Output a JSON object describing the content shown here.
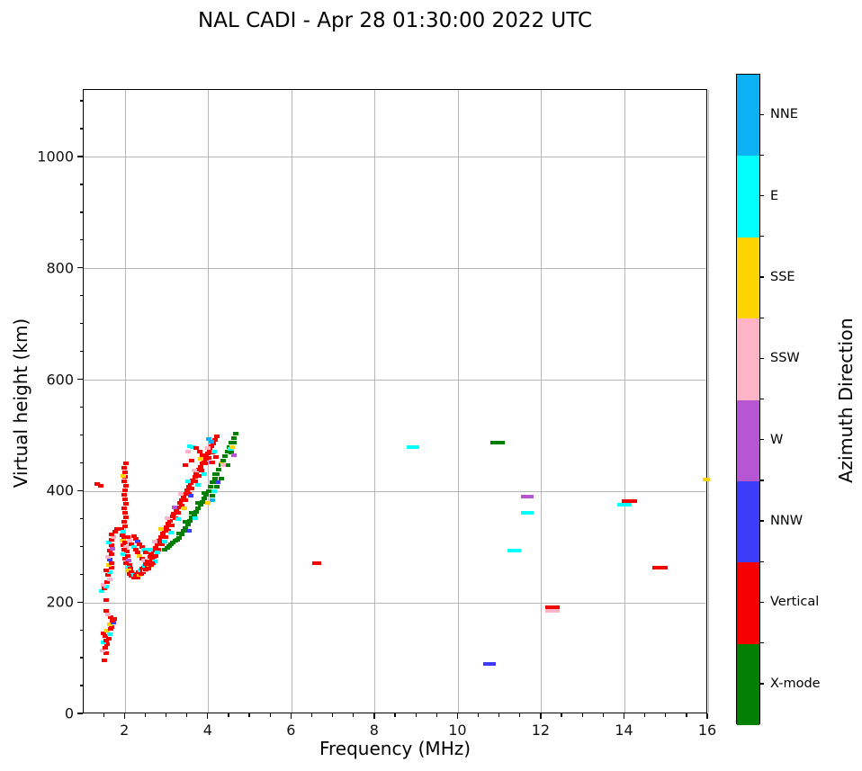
{
  "title": "NAL CADI - Apr 28 01:30:00 2022 UTC",
  "chart_data": {
    "type": "scatter",
    "title": "NAL CADI - Apr 28 01:30:00 2022 UTC",
    "xlabel": "Frequency (MHz)",
    "ylabel": "Virtual height (km)",
    "xlim": [
      1,
      16
    ],
    "ylim": [
      0,
      1121
    ],
    "xticks": [
      2,
      4,
      6,
      8,
      10,
      12,
      14,
      16
    ],
    "yticks": [
      0,
      200,
      400,
      600,
      800,
      1000
    ],
    "x_minor_step": 0.5,
    "y_minor_step": 50,
    "grid": true,
    "legend_position": "right-colorbar",
    "colorbar": {
      "label": "Azimuth Direction",
      "categories": [
        {
          "name": "NNE",
          "color": "#0ab2f5"
        },
        {
          "name": "E",
          "color": "#00ffff"
        },
        {
          "name": "SSE",
          "color": "#ffd400"
        },
        {
          "name": "SSW",
          "color": "#ffb4c8"
        },
        {
          "name": "W",
          "color": "#b656d2"
        },
        {
          "name": "NNW",
          "color": "#3d3cfa"
        },
        {
          "name": "Vertical",
          "color": "#f80000"
        },
        {
          "name": "X-mode",
          "color": "#008000"
        }
      ]
    },
    "marker": {
      "w": 6,
      "h": 4
    },
    "points": [
      [
        1.5,
        97,
        6
      ],
      [
        1.55,
        110,
        6
      ],
      [
        1.45,
        115,
        3
      ],
      [
        1.52,
        120,
        6
      ],
      [
        1.56,
        126,
        6
      ],
      [
        1.48,
        130,
        1
      ],
      [
        1.55,
        133,
        6
      ],
      [
        1.6,
        136,
        6
      ],
      [
        1.52,
        140,
        6
      ],
      [
        1.62,
        143,
        1
      ],
      [
        1.47,
        146,
        6
      ],
      [
        1.57,
        150,
        2
      ],
      [
        1.65,
        153,
        6
      ],
      [
        1.68,
        157,
        6
      ],
      [
        1.62,
        161,
        2
      ],
      [
        1.72,
        164,
        5
      ],
      [
        1.69,
        168,
        6
      ],
      [
        1.74,
        171,
        6
      ],
      [
        1.64,
        175,
        6
      ],
      [
        1.59,
        179,
        3
      ],
      [
        1.55,
        185,
        6
      ],
      [
        1.53,
        205,
        6
      ],
      [
        1.44,
        222,
        1
      ],
      [
        1.5,
        226,
        6
      ],
      [
        1.54,
        230,
        1
      ],
      [
        1.47,
        233,
        3
      ],
      [
        1.56,
        238,
        6
      ],
      [
        1.62,
        243,
        3
      ],
      [
        1.58,
        250,
        6
      ],
      [
        1.63,
        255,
        1
      ],
      [
        1.55,
        259,
        6
      ],
      [
        1.66,
        263,
        6
      ],
      [
        1.6,
        268,
        2
      ],
      [
        1.68,
        272,
        6
      ],
      [
        1.63,
        278,
        5
      ],
      [
        1.58,
        283,
        3
      ],
      [
        1.66,
        288,
        6
      ],
      [
        1.62,
        294,
        6
      ],
      [
        1.7,
        298,
        4
      ],
      [
        1.66,
        303,
        6
      ],
      [
        1.6,
        308,
        1
      ],
      [
        1.68,
        313,
        6
      ],
      [
        1.72,
        318,
        3
      ],
      [
        1.66,
        323,
        6
      ],
      [
        1.76,
        328,
        6
      ],
      [
        1.8,
        332,
        6
      ],
      [
        1.32,
        413,
        6
      ],
      [
        1.42,
        410,
        6
      ],
      [
        1.9,
        332,
        6
      ],
      [
        1.95,
        328,
        1
      ],
      [
        1.92,
        322,
        6
      ],
      [
        1.98,
        318,
        6
      ],
      [
        1.94,
        312,
        2
      ],
      [
        2.0,
        308,
        6
      ],
      [
        1.96,
        304,
        6
      ],
      [
        2.02,
        300,
        3
      ],
      [
        1.98,
        296,
        6
      ],
      [
        2.04,
        292,
        6
      ],
      [
        1.95,
        288,
        1
      ],
      [
        2.06,
        284,
        6
      ],
      [
        2.0,
        280,
        6
      ],
      [
        2.08,
        276,
        4
      ],
      [
        2.02,
        272,
        6
      ],
      [
        2.1,
        268,
        6
      ],
      [
        2.05,
        264,
        1
      ],
      [
        2.12,
        262,
        6
      ],
      [
        2.08,
        258,
        2
      ],
      [
        2.15,
        255,
        6
      ],
      [
        2.1,
        252,
        6
      ],
      [
        2.18,
        250,
        3
      ],
      [
        2.14,
        248,
        6
      ],
      [
        2.22,
        246,
        6
      ],
      [
        2.2,
        250,
        1
      ],
      [
        2.26,
        248,
        6
      ],
      [
        2.3,
        246,
        6
      ],
      [
        2.28,
        252,
        6
      ],
      [
        2.34,
        250,
        2
      ],
      [
        2.32,
        256,
        6
      ],
      [
        2.38,
        252,
        6
      ],
      [
        2.36,
        258,
        1
      ],
      [
        2.42,
        255,
        6
      ],
      [
        2.4,
        262,
        6
      ],
      [
        2.46,
        258,
        3
      ],
      [
        2.44,
        264,
        6
      ],
      [
        2.5,
        260,
        6
      ],
      [
        2.48,
        266,
        1
      ],
      [
        2.54,
        263,
        6
      ],
      [
        2.52,
        270,
        6
      ],
      [
        2.58,
        266,
        2
      ],
      [
        2.56,
        272,
        6
      ],
      [
        2.62,
        268,
        6
      ],
      [
        2.6,
        275,
        4
      ],
      [
        2.66,
        272,
        6
      ],
      [
        2.64,
        278,
        6
      ],
      [
        2.7,
        275,
        1
      ],
      [
        2.68,
        282,
        6
      ],
      [
        2.05,
        318,
        6
      ],
      [
        2.1,
        312,
        3
      ],
      [
        2.15,
        306,
        6
      ],
      [
        2.2,
        300,
        1
      ],
      [
        2.25,
        295,
        6
      ],
      [
        2.3,
        290,
        6
      ],
      [
        2.35,
        285,
        2
      ],
      [
        2.4,
        280,
        6
      ],
      [
        2.45,
        276,
        3
      ],
      [
        2.2,
        320,
        6
      ],
      [
        2.25,
        315,
        6
      ],
      [
        2.3,
        310,
        5
      ],
      [
        2.35,
        305,
        6
      ],
      [
        2.4,
        300,
        6
      ],
      [
        2.45,
        295,
        1
      ],
      [
        2.5,
        290,
        6
      ],
      [
        2.0,
        338,
        6
      ],
      [
        1.98,
        346,
        6
      ],
      [
        2.02,
        354,
        6
      ],
      [
        2.0,
        362,
        6
      ],
      [
        1.97,
        370,
        6
      ],
      [
        2.02,
        378,
        6
      ],
      [
        2.0,
        386,
        6
      ],
      [
        1.98,
        394,
        6
      ],
      [
        2.0,
        402,
        6
      ],
      [
        2.02,
        410,
        6
      ],
      [
        1.98,
        418,
        6
      ],
      [
        2.0,
        426,
        6
      ],
      [
        2.0,
        434,
        6
      ],
      [
        1.98,
        442,
        6
      ],
      [
        2.01,
        450,
        6
      ],
      [
        1.96,
        428,
        2
      ],
      [
        2.5,
        270,
        6
      ],
      [
        2.54,
        275,
        6
      ],
      [
        2.59,
        282,
        6
      ],
      [
        2.63,
        287,
        6
      ],
      [
        2.68,
        294,
        6
      ],
      [
        2.72,
        299,
        6
      ],
      [
        2.77,
        306,
        6
      ],
      [
        2.81,
        311,
        6
      ],
      [
        2.86,
        318,
        6
      ],
      [
        2.9,
        324,
        6
      ],
      [
        2.95,
        330,
        6
      ],
      [
        2.99,
        336,
        6
      ],
      [
        3.04,
        342,
        6
      ],
      [
        3.08,
        348,
        6
      ],
      [
        3.13,
        355,
        6
      ],
      [
        3.17,
        360,
        6
      ],
      [
        3.22,
        367,
        6
      ],
      [
        3.26,
        372,
        6
      ],
      [
        3.31,
        379,
        6
      ],
      [
        3.35,
        384,
        6
      ],
      [
        3.4,
        391,
        6
      ],
      [
        3.44,
        396,
        6
      ],
      [
        3.49,
        403,
        6
      ],
      [
        3.53,
        408,
        6
      ],
      [
        3.58,
        415,
        6
      ],
      [
        3.62,
        420,
        6
      ],
      [
        3.67,
        427,
        6
      ],
      [
        3.71,
        432,
        6
      ],
      [
        3.76,
        439,
        6
      ],
      [
        3.8,
        445,
        6
      ],
      [
        3.85,
        451,
        6
      ],
      [
        3.89,
        456,
        6
      ],
      [
        3.94,
        463,
        6
      ],
      [
        3.98,
        469,
        6
      ],
      [
        4.03,
        475,
        6
      ],
      [
        4.07,
        481,
        6
      ],
      [
        4.12,
        487,
        6
      ],
      [
        4.16,
        493,
        6
      ],
      [
        4.2,
        499,
        6
      ],
      [
        2.56,
        262,
        6
      ],
      [
        2.64,
        272,
        6
      ],
      [
        2.72,
        284,
        6
      ],
      [
        2.8,
        296,
        6
      ],
      [
        2.88,
        305,
        6
      ],
      [
        2.96,
        318,
        6
      ],
      [
        3.04,
        330,
        6
      ],
      [
        3.12,
        340,
        6
      ],
      [
        3.2,
        352,
        6
      ],
      [
        3.28,
        362,
        6
      ],
      [
        3.36,
        374,
        6
      ],
      [
        3.44,
        384,
        6
      ],
      [
        3.52,
        396,
        6
      ],
      [
        3.6,
        406,
        6
      ],
      [
        3.68,
        418,
        6
      ],
      [
        3.76,
        428,
        6
      ],
      [
        3.84,
        438,
        6
      ],
      [
        3.92,
        450,
        6
      ],
      [
        4.0,
        460,
        6
      ],
      [
        4.08,
        470,
        6
      ],
      [
        2.6,
        295,
        1
      ],
      [
        2.7,
        310,
        3
      ],
      [
        2.78,
        290,
        1
      ],
      [
        2.86,
        332,
        2
      ],
      [
        2.94,
        310,
        1
      ],
      [
        3.02,
        352,
        3
      ],
      [
        3.1,
        326,
        1
      ],
      [
        3.18,
        372,
        4
      ],
      [
        3.26,
        350,
        1
      ],
      [
        3.34,
        396,
        3
      ],
      [
        3.42,
        370,
        2
      ],
      [
        3.5,
        418,
        1
      ],
      [
        3.58,
        392,
        5
      ],
      [
        3.66,
        438,
        3
      ],
      [
        3.74,
        412,
        1
      ],
      [
        3.82,
        458,
        2
      ],
      [
        3.9,
        432,
        1
      ],
      [
        3.98,
        478,
        3
      ],
      [
        4.06,
        452,
        4
      ],
      [
        4.14,
        472,
        1
      ],
      [
        3.55,
        482,
        1
      ],
      [
        3.62,
        480,
        1
      ],
      [
        3.5,
        472,
        3
      ],
      [
        3.7,
        478,
        6
      ],
      [
        3.78,
        472,
        6
      ],
      [
        3.86,
        466,
        6
      ],
      [
        3.95,
        458,
        6
      ],
      [
        4.0,
        495,
        0
      ],
      [
        4.06,
        489,
        0
      ],
      [
        4.1,
        452,
        6
      ],
      [
        4.18,
        462,
        6
      ],
      [
        4.3,
        450,
        2
      ],
      [
        3.45,
        448,
        6
      ],
      [
        3.6,
        455,
        6
      ],
      [
        2.95,
        296,
        7
      ],
      [
        3.0,
        299,
        7
      ],
      [
        3.05,
        302,
        7
      ],
      [
        3.1,
        305,
        7
      ],
      [
        3.15,
        308,
        7
      ],
      [
        3.2,
        311,
        7
      ],
      [
        3.25,
        314,
        7
      ],
      [
        3.3,
        317,
        7
      ],
      [
        3.35,
        323,
        7
      ],
      [
        3.4,
        329,
        7
      ],
      [
        3.45,
        335,
        7
      ],
      [
        3.5,
        341,
        7
      ],
      [
        3.55,
        347,
        7
      ],
      [
        3.6,
        353,
        7
      ],
      [
        3.65,
        359,
        7
      ],
      [
        3.7,
        364,
        7
      ],
      [
        3.75,
        370,
        7
      ],
      [
        3.8,
        376,
        7
      ],
      [
        3.85,
        382,
        7
      ],
      [
        3.9,
        388,
        7
      ],
      [
        3.95,
        394,
        7
      ],
      [
        4.0,
        400,
        7
      ],
      [
        4.05,
        408,
        7
      ],
      [
        4.1,
        416,
        7
      ],
      [
        4.15,
        424,
        7
      ],
      [
        4.2,
        432,
        7
      ],
      [
        4.25,
        440,
        7
      ],
      [
        4.3,
        448,
        7
      ],
      [
        4.35,
        456,
        7
      ],
      [
        4.4,
        464,
        7
      ],
      [
        4.45,
        472,
        7
      ],
      [
        4.5,
        480,
        7
      ],
      [
        4.55,
        488,
        7
      ],
      [
        4.6,
        496,
        7
      ],
      [
        4.65,
        504,
        7
      ],
      [
        3.3,
        325,
        7
      ],
      [
        3.45,
        345,
        7
      ],
      [
        3.6,
        362,
        7
      ],
      [
        3.75,
        380,
        7
      ],
      [
        3.9,
        398,
        7
      ],
      [
        4.05,
        400,
        7
      ],
      [
        4.1,
        392,
        7
      ],
      [
        4.2,
        408,
        7
      ],
      [
        4.15,
        432,
        7
      ],
      [
        4.3,
        424,
        7
      ],
      [
        4.45,
        448,
        7
      ],
      [
        4.55,
        470,
        7
      ],
      [
        4.62,
        488,
        7
      ],
      [
        4.14,
        400,
        1
      ],
      [
        4.1,
        384,
        0
      ],
      [
        4.22,
        416,
        5
      ],
      [
        3.98,
        380,
        2
      ],
      [
        4.35,
        448,
        3
      ],
      [
        4.52,
        476,
        1
      ],
      [
        4.56,
        480,
        2
      ],
      [
        4.6,
        466,
        4
      ],
      [
        3.68,
        352,
        1
      ],
      [
        3.52,
        330,
        5
      ],
      [
        6.6,
        272,
        6,
        10
      ],
      [
        8.9,
        480,
        1,
        14
      ],
      [
        10.95,
        488,
        7,
        16
      ],
      [
        11.65,
        391,
        4,
        14
      ],
      [
        11.65,
        362,
        1,
        14
      ],
      [
        11.35,
        294,
        1,
        15
      ],
      [
        12.25,
        193,
        6,
        16
      ],
      [
        12.25,
        186,
        3,
        16
      ],
      [
        10.75,
        90,
        5,
        14
      ],
      [
        14.1,
        383,
        6,
        17
      ],
      [
        14.0,
        377,
        1,
        16
      ],
      [
        14.85,
        263,
        6,
        17
      ],
      [
        15.95,
        421,
        2,
        8
      ]
    ]
  }
}
